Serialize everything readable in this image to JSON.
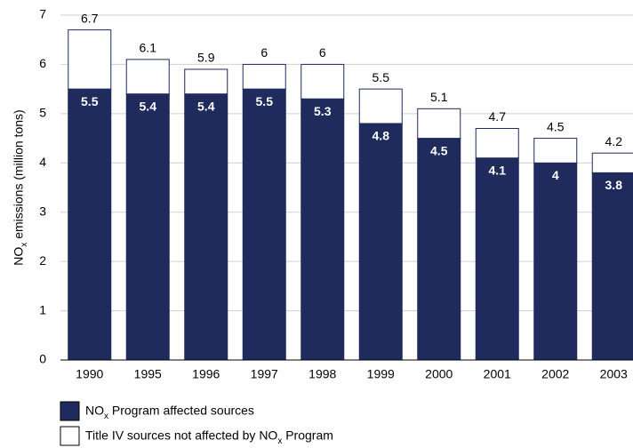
{
  "chart_data": {
    "type": "stacked_bar",
    "y_label": "NOx emissions (million tons)",
    "categories": [
      "1990",
      "1995",
      "1996",
      "1997",
      "1998",
      "1999",
      "2000",
      "2001",
      "2002",
      "2003"
    ],
    "series": [
      {
        "name": "NOx Program affected sources",
        "color": "#1e2b5c",
        "values": [
          5.5,
          5.4,
          5.4,
          5.5,
          5.3,
          4.8,
          4.5,
          4.1,
          4.0,
          3.8
        ]
      },
      {
        "name": "Title IV sources not affected by NOx Program",
        "color": "#ffffff",
        "values": [
          1.2,
          0.7,
          0.5,
          0.5,
          0.7,
          0.7,
          0.6,
          0.6,
          0.5,
          0.4
        ]
      }
    ],
    "totals": [
      6.7,
      6.1,
      5.9,
      6.0,
      6.0,
      5.5,
      5.1,
      4.7,
      4.5,
      4.2
    ],
    "ylim": [
      0,
      7
    ],
    "yticks": [
      0,
      1,
      2,
      3,
      4,
      5,
      6,
      7
    ],
    "grid": true
  }
}
